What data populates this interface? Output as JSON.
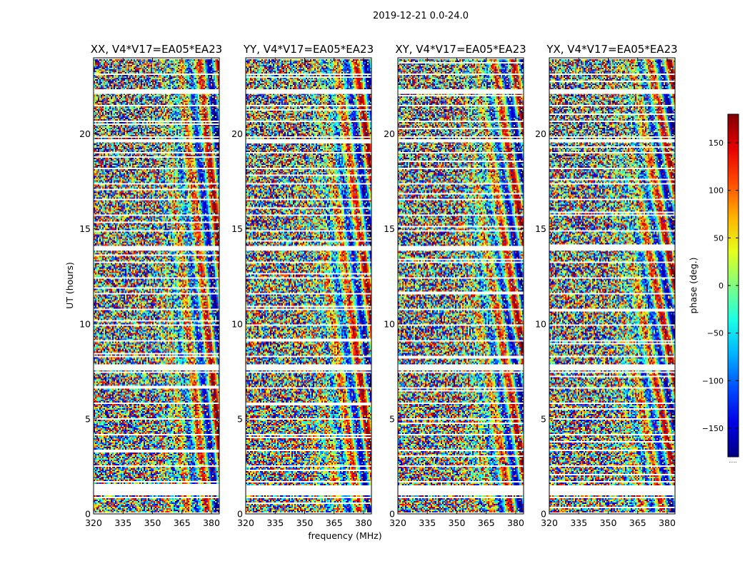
{
  "chart_data": {
    "type": "heatmap",
    "title": "2019-12-21 0.0-24.0",
    "ylabel": "UT (hours)",
    "xlabel": "frequency (MHz)",
    "colorbar_label": "phase (deg.)",
    "colormap": "jet",
    "colorbar_range": [
      -180,
      180
    ],
    "colorbar_ticks": [
      -150,
      -100,
      -50,
      0,
      50,
      100,
      150
    ],
    "colorbar_tick_labels": [
      "−150",
      "−100",
      "−50",
      "0",
      "50",
      "100",
      "150"
    ],
    "colorbar_bottom_label": ".....",
    "xlim": [
      320,
      384
    ],
    "ylim": [
      0,
      24
    ],
    "x_ticks": [
      320,
      335,
      350,
      365,
      380
    ],
    "y_ticks": [
      0,
      5,
      10,
      15,
      20
    ],
    "data_gaps_ut_hours": [
      [
        1.0,
        1.5
      ],
      [
        7.55,
        7.85
      ],
      [
        13.85,
        14.0
      ],
      [
        19.55,
        19.7
      ],
      [
        22.1,
        22.25
      ]
    ],
    "panels": [
      {
        "title": "XX, V4*V17=EA05*EA23",
        "polarization": "XX"
      },
      {
        "title": "YY, V4*V17=EA05*EA23",
        "polarization": "YY"
      },
      {
        "title": "XY, V4*V17=EA05*EA23",
        "polarization": "XY"
      },
      {
        "title": "YX, V4*V17=EA05*EA23",
        "polarization": "YX"
      }
    ]
  }
}
